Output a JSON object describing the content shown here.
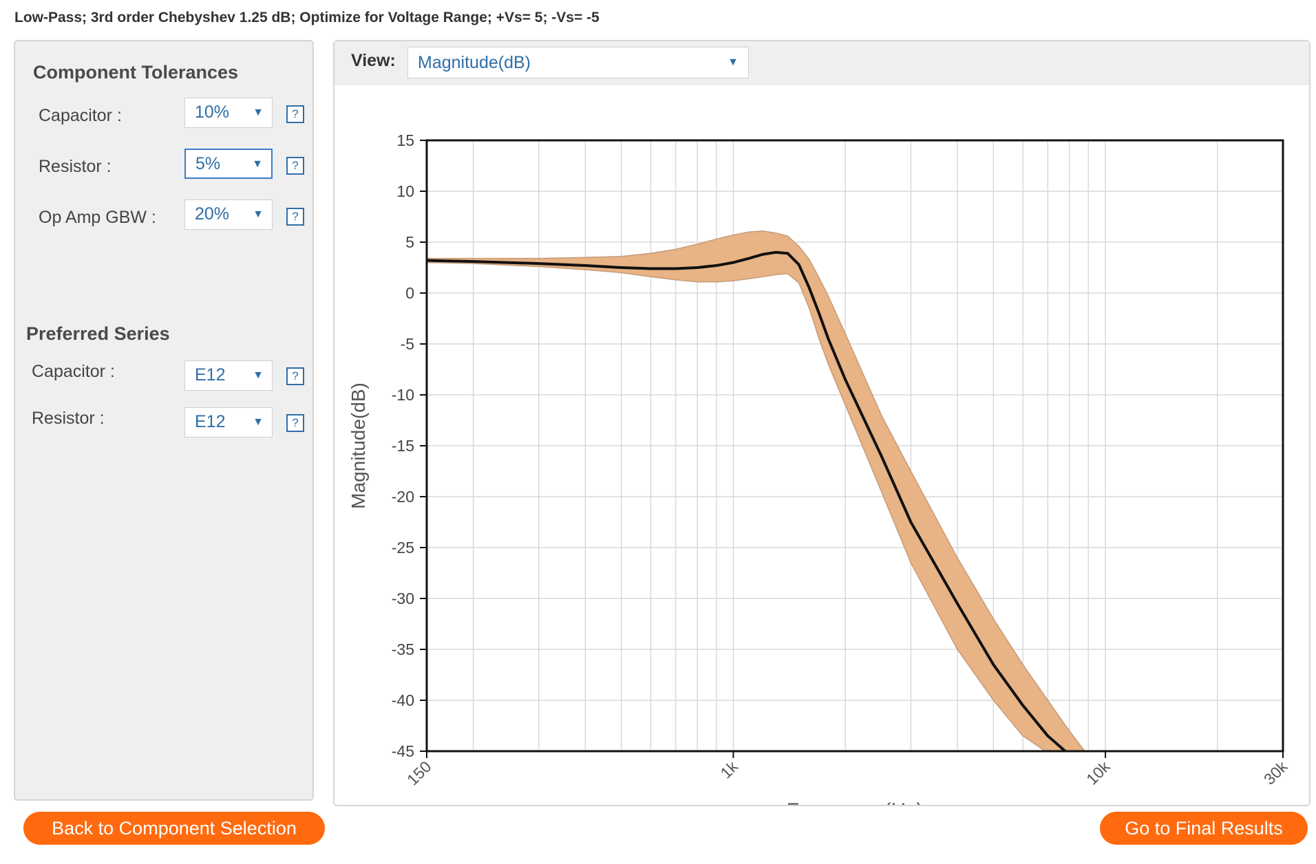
{
  "header": "Low-Pass; 3rd order Chebyshev 1.25 dB; Optimize for Voltage Range; +Vs= 5; -Vs= -5",
  "tolerances": {
    "title": "Component Tolerances",
    "capacitor_label": "Capacitor :",
    "capacitor_value": "10%",
    "resistor_label": "Resistor :",
    "resistor_value": "5%",
    "gbw_label": "Op Amp GBW :",
    "gbw_value": "20%"
  },
  "preferred": {
    "title": "Preferred Series",
    "capacitor_label": "Capacitor :",
    "capacitor_value": "E12",
    "resistor_label": "Resistor :",
    "resistor_value": "E12"
  },
  "help_glyph": "?",
  "dropdown_arrow": "▼",
  "view": {
    "label": "View:",
    "value": "Magnitude(dB)"
  },
  "buttons": {
    "back": "Back to Component Selection",
    "next": "Go to Final Results"
  },
  "colors": {
    "accent": "#ff6a0f",
    "band": "#e8b385",
    "link": "#2f6ea8"
  },
  "chart_data": {
    "type": "line",
    "xlabel": "Frequency(Hz)",
    "ylabel": "Magnitude(dB)",
    "x_scale": "log",
    "xlim": [
      150,
      30000
    ],
    "ylim": [
      -45,
      15
    ],
    "x_ticks": [
      {
        "value": 150,
        "label": "150"
      },
      {
        "value": 1000,
        "label": "1k"
      },
      {
        "value": 10000,
        "label": "10k"
      },
      {
        "value": 30000,
        "label": "30k"
      }
    ],
    "y_ticks": [
      15,
      10,
      5,
      0,
      -5,
      -10,
      -15,
      -20,
      -25,
      -30,
      -35,
      -40,
      -45
    ],
    "grid": true,
    "series": [
      {
        "role": "nominal",
        "x": [
          150,
          200,
          300,
          400,
          500,
          600,
          700,
          800,
          900,
          1000,
          1100,
          1200,
          1300,
          1400,
          1500,
          1600,
          1700,
          1800,
          2000,
          2500,
          3000,
          4000,
          5000,
          6000,
          7000,
          7800
        ],
        "y": [
          3.2,
          3.1,
          2.9,
          2.7,
          2.5,
          2.4,
          2.4,
          2.5,
          2.7,
          3.0,
          3.4,
          3.8,
          4.0,
          3.9,
          2.8,
          0.5,
          -2.0,
          -4.5,
          -8.5,
          -16.0,
          -22.5,
          -30.5,
          -36.5,
          -40.5,
          -43.5,
          -45
        ]
      },
      {
        "role": "tolerance-upper",
        "x": [
          150,
          200,
          300,
          400,
          500,
          600,
          700,
          800,
          900,
          1000,
          1100,
          1200,
          1300,
          1400,
          1500,
          1600,
          1700,
          1800,
          2000,
          2500,
          3000,
          4000,
          5000,
          6000,
          7000,
          8000,
          8800
        ],
        "y": [
          3.4,
          3.4,
          3.4,
          3.5,
          3.6,
          3.9,
          4.3,
          4.8,
          5.3,
          5.7,
          6.0,
          6.1,
          5.9,
          5.6,
          4.6,
          3.3,
          1.5,
          -0.3,
          -4.0,
          -12.0,
          -17.5,
          -26.0,
          -32.0,
          -36.5,
          -40.0,
          -43.0,
          -45
        ]
      },
      {
        "role": "tolerance-lower",
        "x": [
          150,
          200,
          300,
          400,
          500,
          600,
          700,
          800,
          900,
          1000,
          1100,
          1200,
          1300,
          1400,
          1500,
          1600,
          1700,
          1800,
          2000,
          2500,
          3000,
          4000,
          5000,
          6000,
          6900
        ],
        "y": [
          3.0,
          2.9,
          2.6,
          2.3,
          2.0,
          1.6,
          1.3,
          1.1,
          1.1,
          1.2,
          1.4,
          1.6,
          1.8,
          1.9,
          1.0,
          -1.5,
          -4.5,
          -7.0,
          -11.0,
          -19.5,
          -26.5,
          -35.0,
          -40.0,
          -43.5,
          -45
        ]
      }
    ]
  }
}
